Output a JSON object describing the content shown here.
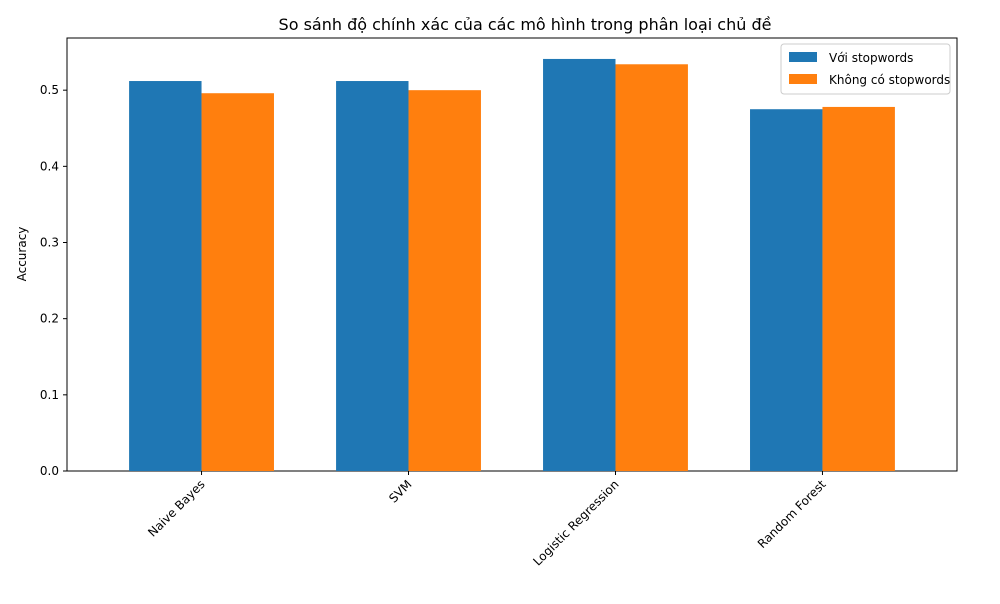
{
  "chart_data": {
    "type": "bar",
    "title": "So sánh độ chính xác của các mô hình trong phân loại chủ đề",
    "xlabel": "",
    "ylabel": "Accuracy",
    "categories": [
      "Naive Bayes",
      "SVM",
      "Logistic Regression",
      "Random Forest"
    ],
    "series": [
      {
        "name": "Với stopwords",
        "values": [
          0.512,
          0.512,
          0.541,
          0.475
        ],
        "color": "#1f77b4"
      },
      {
        "name": "Không có stopwords",
        "values": [
          0.496,
          0.5,
          0.534,
          0.478
        ],
        "color": "#ff7f0e"
      }
    ],
    "ylim": [
      0,
      0.5685
    ],
    "yticks": [
      "0.0",
      "0.1",
      "0.2",
      "0.3",
      "0.4",
      "0.5"
    ],
    "ytick_values": [
      0,
      0.1,
      0.2,
      0.3,
      0.4,
      0.5
    ],
    "xtick_rotation": 45,
    "grid": false,
    "legend_position": "top-right"
  }
}
